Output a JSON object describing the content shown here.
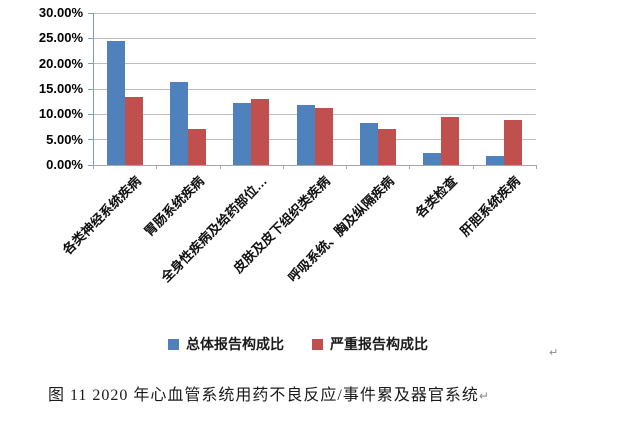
{
  "chart_data": {
    "type": "bar",
    "categories": [
      "各类神经系统疾病",
      "胃肠系统疾病",
      "全身性疾病及给药部位…",
      "皮肤及皮下组织类疾病",
      "呼吸系统、胸及纵隔疾病",
      "各类检查",
      "肝胆系统疾病"
    ],
    "series": [
      {
        "name": "总体报告构成比",
        "color": "#4F81BD",
        "values": [
          24.4,
          16.3,
          12.2,
          11.9,
          8.2,
          2.3,
          1.7
        ]
      },
      {
        "name": "严重报告构成比",
        "color": "#C0504D",
        "values": [
          13.5,
          7.1,
          13.0,
          11.2,
          7.1,
          9.5,
          8.9
        ]
      }
    ],
    "ylim": [
      0,
      30
    ],
    "ytick_step": 5,
    "ytick_labels": [
      "0.00%",
      "5.00%",
      "10.00%",
      "15.00%",
      "20.00%",
      "25.00%",
      "30.00%"
    ],
    "grid": true,
    "legend_position": "bottom",
    "colors": {
      "gridline": "#BFBFBF",
      "y_axis": "#7F9DB9",
      "x_axis": "#A6A6A6"
    }
  },
  "legend": {
    "items": [
      {
        "label": "总体报告构成比",
        "color": "#4F81BD"
      },
      {
        "label": "严重报告构成比",
        "color": "#C0504D"
      }
    ]
  },
  "marks": {
    "after_legend": "↵"
  },
  "caption": {
    "text": "图 11  2020 年心血管系统用药不良反应/事件累及器官系统",
    "mark": "↵"
  }
}
